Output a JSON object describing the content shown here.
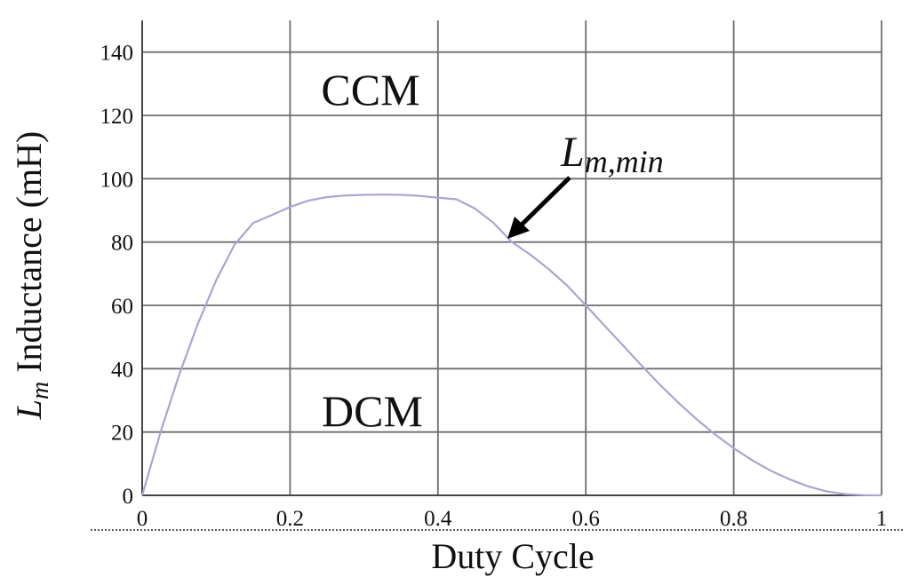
{
  "chart_data": {
    "type": "line",
    "title": "",
    "xlabel": "Duty Cycle",
    "ylabel": {
      "main": "L",
      "sub": "m",
      "rest": " Inductance (mH)"
    },
    "xlim": [
      0,
      1
    ],
    "ylim": [
      0,
      150
    ],
    "x_ticks": [
      0,
      0.2,
      0.4,
      0.6,
      0.8,
      1
    ],
    "x_tick_labels": [
      "0",
      "0.2",
      "0.4",
      "0.6",
      "0.8",
      "1"
    ],
    "y_ticks": [
      0,
      20,
      40,
      60,
      80,
      100,
      120,
      140
    ],
    "y_tick_labels": [
      "0",
      "20",
      "40",
      "60",
      "80",
      "100",
      "120",
      "140"
    ],
    "grid": true,
    "series": [
      {
        "color": "#a9a6d3",
        "x": [
          0,
          0.025,
          0.05,
          0.075,
          0.1,
          0.125,
          0.15,
          0.175,
          0.2,
          0.225,
          0.25,
          0.275,
          0.3,
          0.325,
          0.35,
          0.375,
          0.4,
          0.425,
          0.45,
          0.475,
          0.5,
          0.525,
          0.55,
          0.575,
          0.6,
          0.625,
          0.65,
          0.675,
          0.7,
          0.725,
          0.75,
          0.775,
          0.8,
          0.825,
          0.85,
          0.875,
          0.9,
          0.925,
          0.95,
          0.975,
          1
        ],
        "y": [
          0,
          20.1,
          38.1,
          54.0,
          67.9,
          79.2,
          86.0,
          88.5,
          91.1,
          93.1,
          94.2,
          94.7,
          94.9,
          95.0,
          94.9,
          94.6,
          94.0,
          93.5,
          90.6,
          86.1,
          80.0,
          76.0,
          71.4,
          66.2,
          60.0,
          53.7,
          47.4,
          41.1,
          35.0,
          29.3,
          24.0,
          19.2,
          14.9,
          11.1,
          7.8,
          5.1,
          2.9,
          1.3,
          0.4,
          0.05,
          0
        ]
      }
    ],
    "annotations": {
      "ccm": "CCM",
      "dcm": "DCM",
      "lm_min": {
        "main": "L",
        "sub": "m,min"
      }
    }
  }
}
